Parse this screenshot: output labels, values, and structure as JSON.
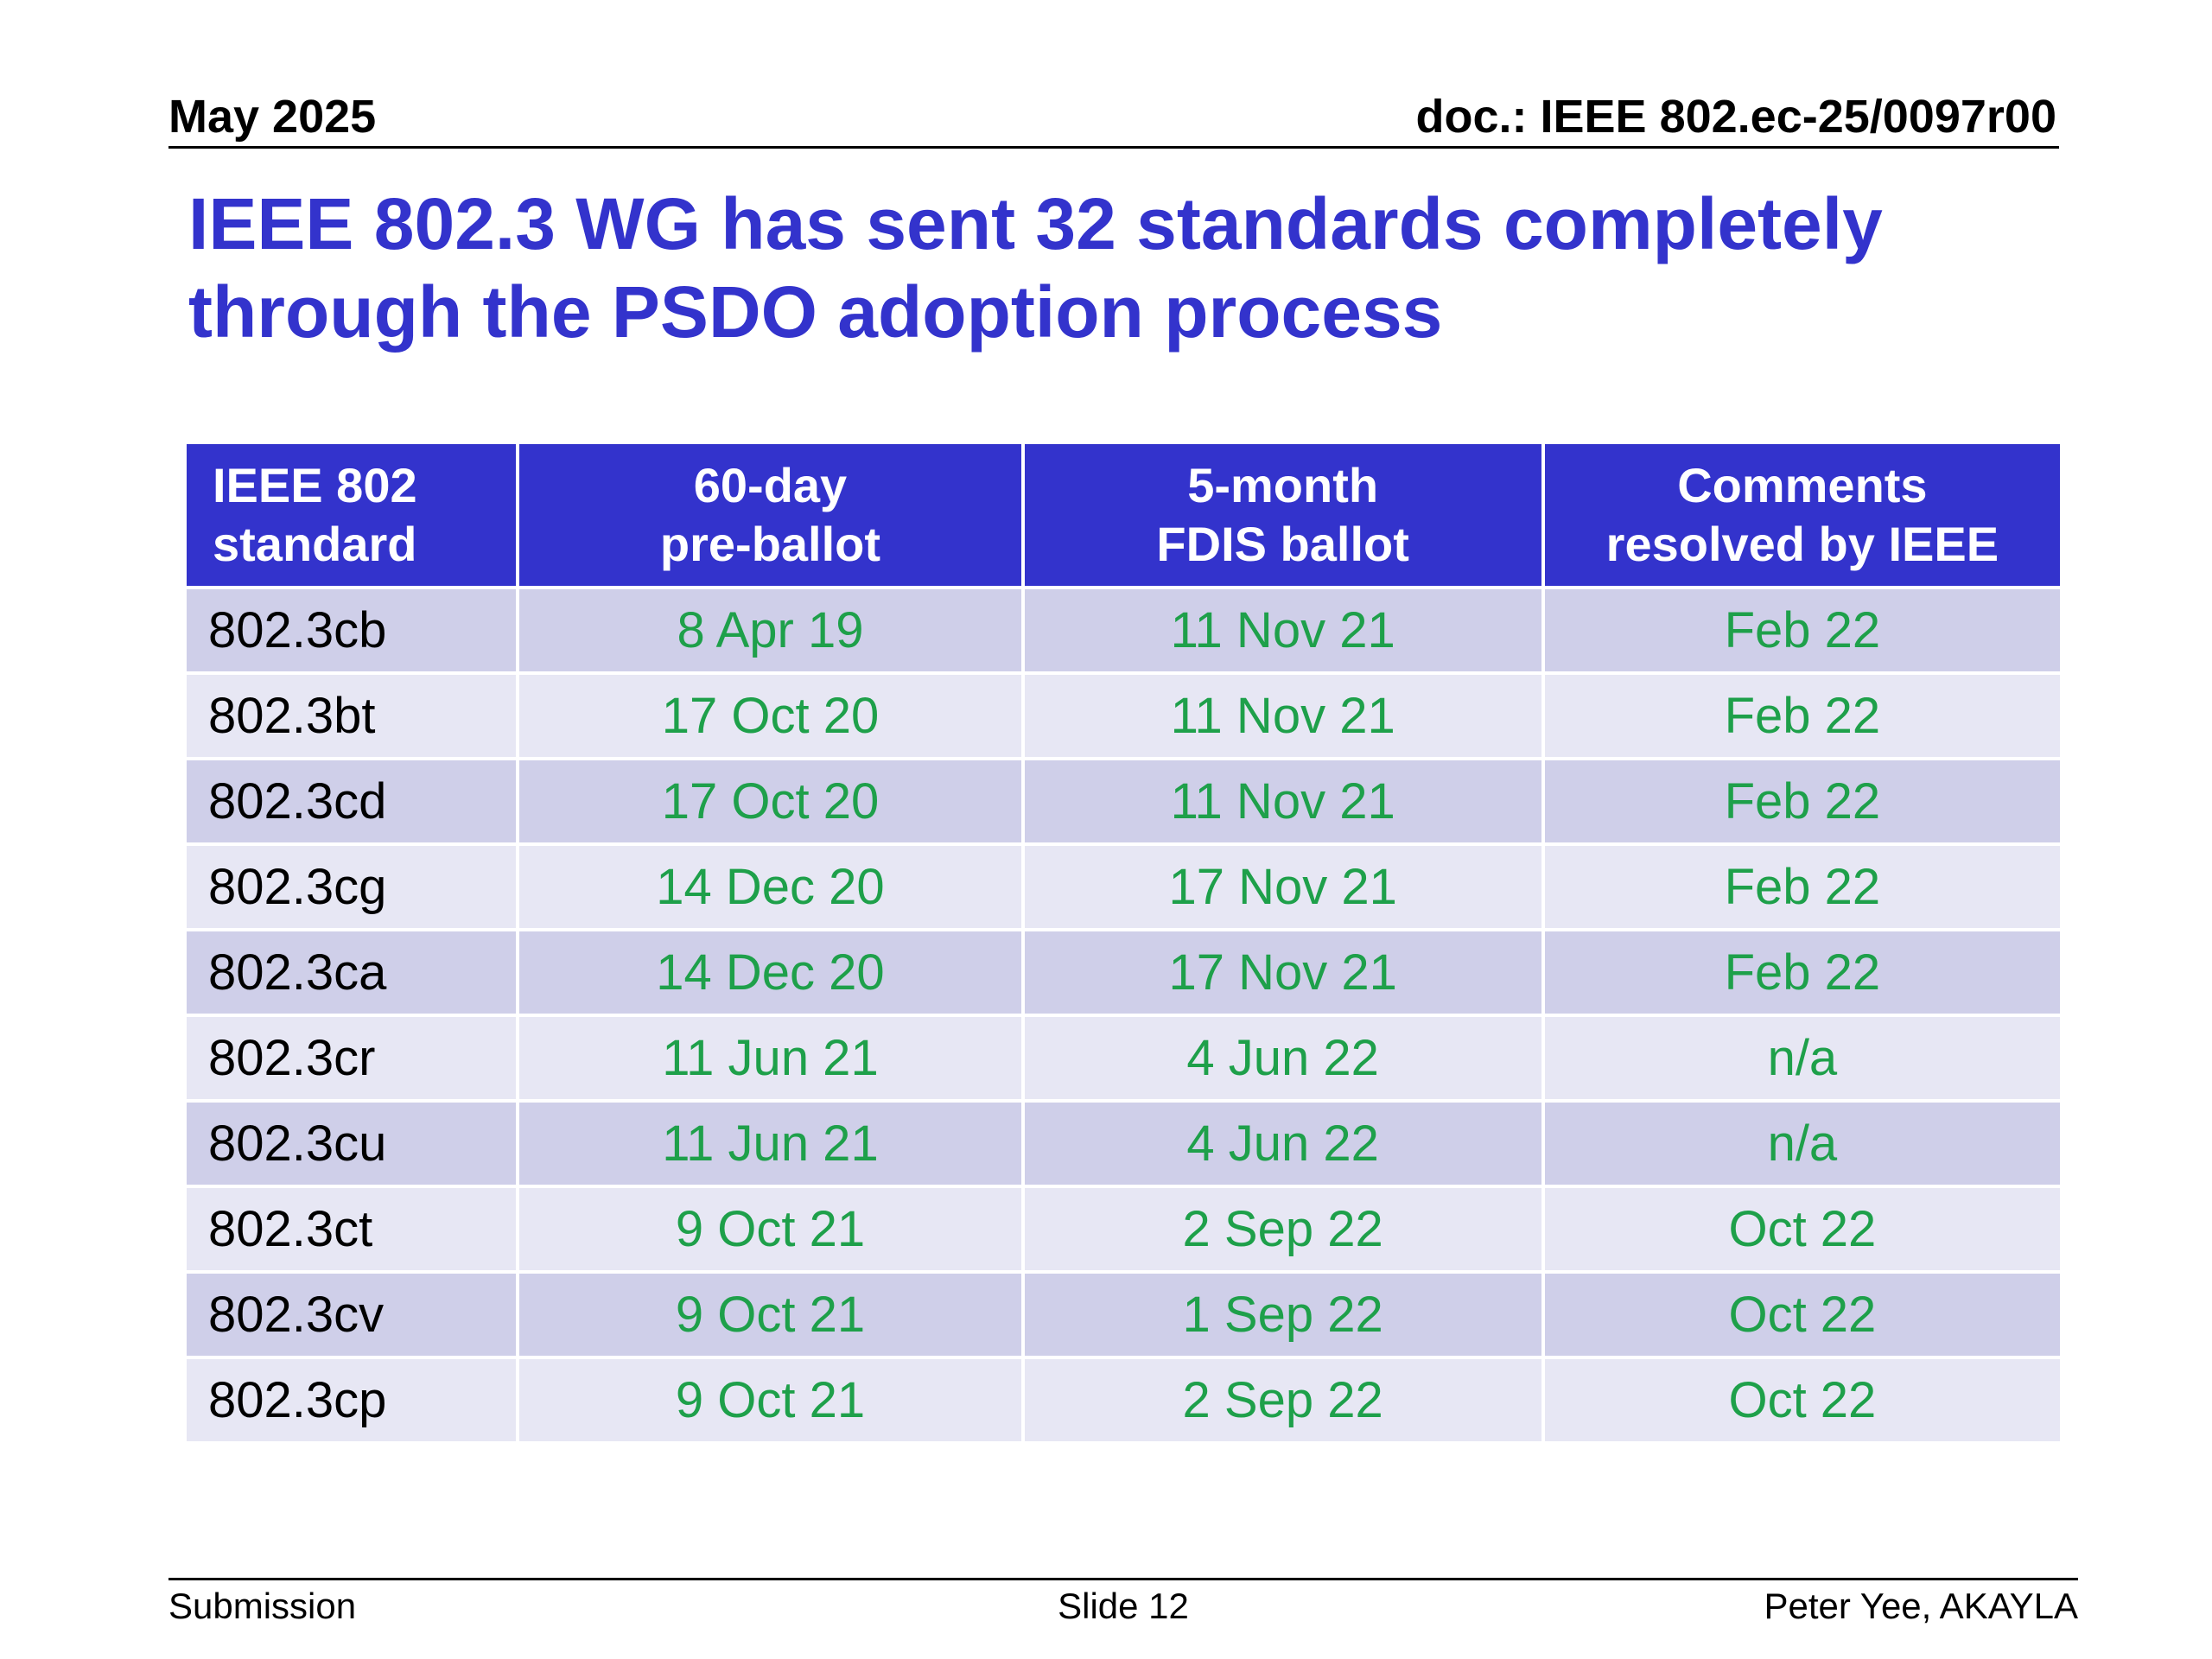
{
  "header": {
    "date": "May 2025",
    "doc": "doc.: IEEE 802.ec-25/0097r00"
  },
  "title_line1": "IEEE 802.3 WG has sent 32 standards completely",
  "title_line2": "through the PSDO adoption process",
  "table": {
    "columns": [
      {
        "line1": "IEEE 802",
        "line2": "standard"
      },
      {
        "line1": "60-day",
        "line2": "pre-ballot"
      },
      {
        "line1": "5-month",
        "line2": "FDIS ballot"
      },
      {
        "line1": "Comments",
        "line2": "resolved by IEEE"
      }
    ],
    "rows": [
      [
        "802.3cb",
        "8 Apr 19",
        "11 Nov 21",
        "Feb 22"
      ],
      [
        "802.3bt",
        "17 Oct 20",
        "11 Nov 21",
        "Feb 22"
      ],
      [
        "802.3cd",
        "17 Oct 20",
        "11 Nov 21",
        "Feb 22"
      ],
      [
        "802.3cg",
        "14 Dec 20",
        "17 Nov 21",
        "Feb 22"
      ],
      [
        "802.3ca",
        "14 Dec 20",
        "17 Nov 21",
        "Feb 22"
      ],
      [
        "802.3cr",
        "11 Jun 21",
        "4 Jun 22",
        "n/a"
      ],
      [
        "802.3cu",
        "11 Jun 21",
        "4 Jun 22",
        "n/a"
      ],
      [
        "802.3ct",
        "9 Oct 21",
        "2 Sep 22",
        "Oct 22"
      ],
      [
        "802.3cv",
        "9 Oct 21",
        "1 Sep 22",
        "Oct 22"
      ],
      [
        "802.3cp",
        "9 Oct 21",
        "2 Sep 22",
        "Oct 22"
      ]
    ]
  },
  "colors": {
    "title": "#3333cc",
    "header_bg": "#3333cc",
    "date_value": "#1ea04a",
    "row_dark": "#cfcfe9",
    "row_light": "#e7e7f4"
  },
  "footer": {
    "left": "Submission",
    "center": "Slide 12",
    "right": "Peter Yee, AKAYLA"
  }
}
